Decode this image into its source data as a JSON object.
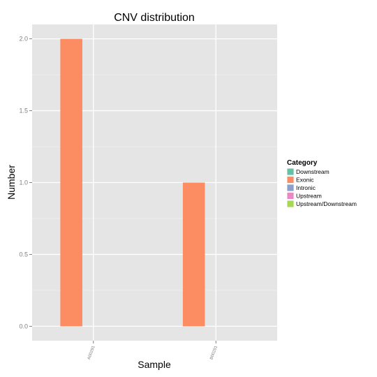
{
  "chart_data": {
    "type": "bar",
    "title": "CNV distribution",
    "xlabel": "Sample",
    "ylabel": "Number",
    "categories": [
      "A00291",
      "B00291"
    ],
    "ylim": [
      -0.1,
      2.1
    ],
    "yticks": [
      0.0,
      0.5,
      1.0,
      1.5,
      2.0
    ],
    "ytick_labels": [
      "0.0",
      "0.5",
      "1.0",
      "1.5",
      "2.0"
    ],
    "grid": true,
    "legend_position": "right",
    "legend_title": "Category",
    "series": [
      {
        "name": "Downstream",
        "color": "#66c2a5",
        "values": [
          0,
          0
        ]
      },
      {
        "name": "Exonic",
        "color": "#fc8d62",
        "values": [
          2,
          1
        ]
      },
      {
        "name": "Intronic",
        "color": "#8da0cb",
        "values": [
          0,
          0
        ]
      },
      {
        "name": "Upstream",
        "color": "#e78ac3",
        "values": [
          0,
          0
        ]
      },
      {
        "name": "Upstream/Downstream",
        "color": "#a6d854",
        "values": [
          0,
          0
        ]
      }
    ]
  },
  "colors": {
    "panel_background": "#e5e5e5",
    "grid_major": "#ffffff",
    "grid_minor": "#f2f2f2"
  }
}
